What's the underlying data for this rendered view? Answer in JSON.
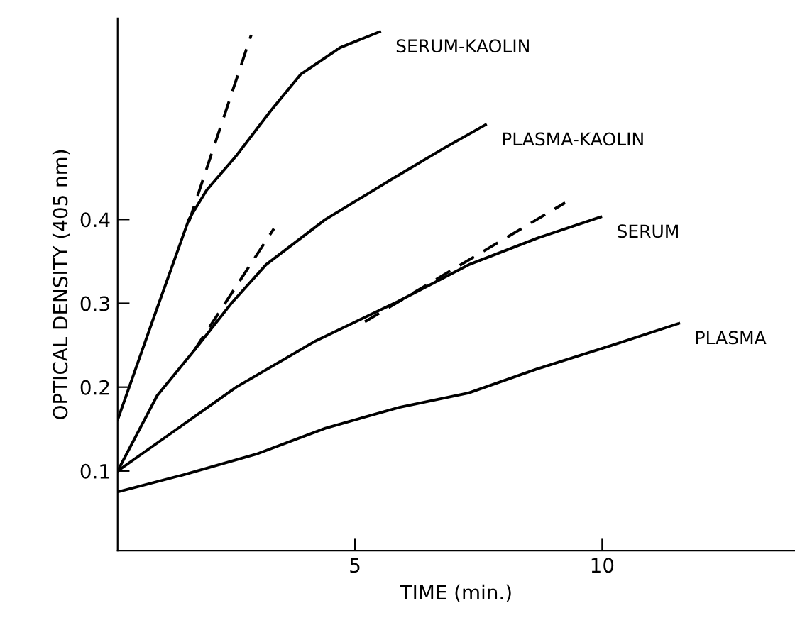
{
  "chart_data": {
    "type": "line",
    "xlabel": "TIME (min.)",
    "ylabel": "OPTICAL DENSITY (405 nm)",
    "xlim": [
      0.2,
      13.9
    ],
    "ylim": [
      0.005,
      0.64
    ],
    "xticks": [
      5,
      10
    ],
    "yticks": [
      0.1,
      0.2,
      0.3,
      0.4
    ],
    "grid": false,
    "legend": false,
    "marker": "none",
    "series": [
      {
        "name": "SERUM-KAOLIN",
        "color": "#000000",
        "line_style": "solid",
        "x": [
          0.2,
          0.9,
          1.64,
          2.0,
          2.6,
          3.3,
          3.9,
          4.7,
          5.5
        ],
        "values": [
          0.161,
          0.278,
          0.4,
          0.435,
          0.476,
          0.53,
          0.573,
          0.605,
          0.624
        ]
      },
      {
        "color": "#000000",
        "line_style": "dashed",
        "x": [
          1.64,
          2.9
        ],
        "values": [
          0.397,
          0.62
        ]
      },
      {
        "name": "PLASMA-KAOLIN",
        "color": "#000000",
        "line_style": "solid",
        "x": [
          0.2,
          1.0,
          1.75,
          2.5,
          3.2,
          4.4,
          5.8,
          6.8,
          7.64
        ],
        "values": [
          0.1,
          0.19,
          0.244,
          0.3,
          0.346,
          0.4,
          0.45,
          0.485,
          0.513
        ]
      },
      {
        "color": "#000000",
        "line_style": "dashed",
        "x": [
          1.75,
          3.36
        ],
        "values": [
          0.244,
          0.389
        ]
      },
      {
        "name": "SERUM",
        "color": "#000000",
        "line_style": "solid",
        "x": [
          0.2,
          1.4,
          2.6,
          4.2,
          5.86,
          7.3,
          8.7,
          9.97
        ],
        "values": [
          0.1,
          0.15,
          0.2,
          0.255,
          0.302,
          0.346,
          0.378,
          0.403
        ]
      },
      {
        "color": "#000000",
        "line_style": "dashed",
        "x": [
          5.2,
          9.25
        ],
        "values": [
          0.278,
          0.42
        ]
      },
      {
        "name": "PLASMA",
        "color": "#000000",
        "line_style": "solid",
        "x": [
          0.2,
          1.5,
          3.0,
          4.4,
          5.9,
          7.3,
          8.7,
          10.2,
          11.55
        ],
        "values": [
          0.075,
          0.095,
          0.12,
          0.151,
          0.176,
          0.193,
          0.222,
          0.25,
          0.276
        ]
      }
    ]
  }
}
